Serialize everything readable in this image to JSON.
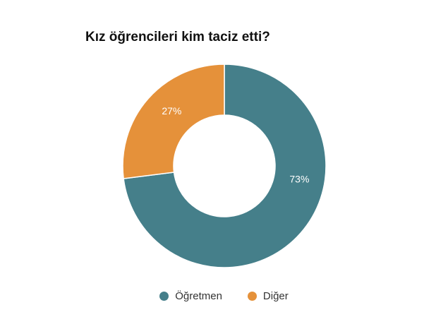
{
  "chart_data": {
    "type": "pie",
    "variant": "donut",
    "title": "Kız öğrencileri kim taciz etti?",
    "categories": [
      "Öğretmen",
      "Diğer"
    ],
    "values": [
      73,
      27
    ],
    "labels": [
      "73%",
      "27%"
    ],
    "colors": [
      "#457f8a",
      "#e5913a"
    ],
    "legend_placement": "bottom-center"
  }
}
